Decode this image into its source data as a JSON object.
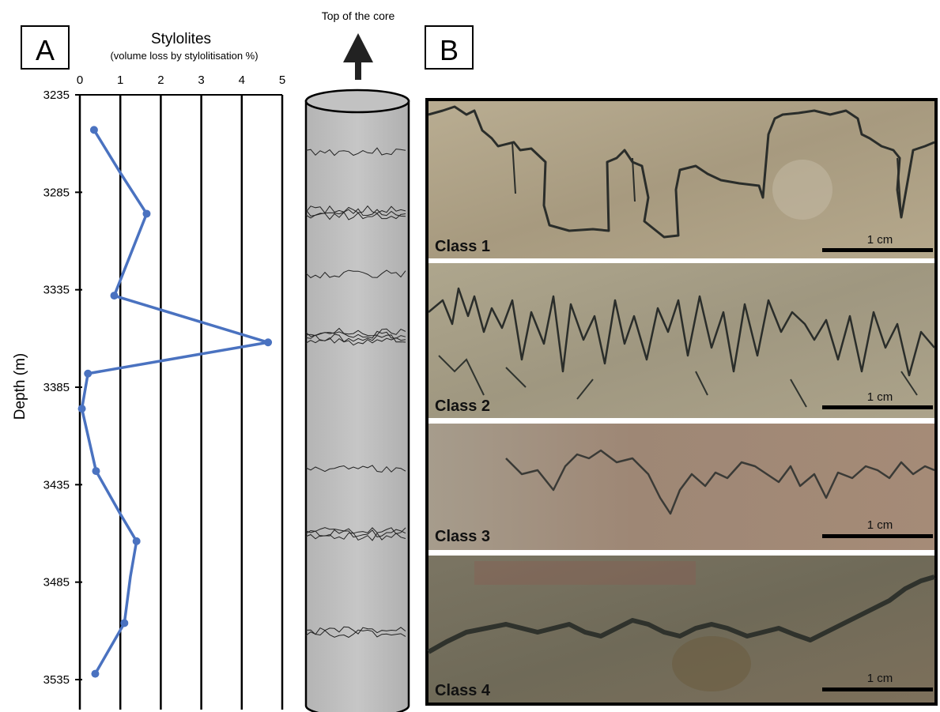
{
  "panel_a_label": "A",
  "panel_b_label": "B",
  "core_label": "Top of the core",
  "chart_data": {
    "type": "line",
    "title": "Stylolites",
    "subtitle": "(volume loss by stylolitisation %)",
    "xlabel": "",
    "ylabel": "Depth (m)",
    "xlim": [
      0,
      5
    ],
    "ylim": [
      3235,
      3545
    ],
    "y_inverted": true,
    "grid": "vertical",
    "x_ticks": [
      "0",
      "1",
      "2",
      "3",
      "4",
      "5"
    ],
    "y_ticks": [
      "3235",
      "3285",
      "3335",
      "3385",
      "3435",
      "3485",
      "3535"
    ],
    "line_color": "#4a72c0",
    "series": [
      {
        "x": [
          0.35,
          1.0,
          1.65,
          0.85,
          1.0,
          4.65,
          0.2,
          0.05,
          0.4,
          1.0,
          1.4,
          1.25,
          1.1,
          0.38
        ],
        "y": [
          3253,
          3275,
          3296,
          3338,
          3339,
          3362,
          3378,
          3396,
          3428,
          3450,
          3464,
          3482,
          3506,
          3532
        ]
      }
    ]
  },
  "photos": [
    {
      "class_label": "Class 1",
      "scale_label": "1 cm"
    },
    {
      "class_label": "Class 2",
      "scale_label": "1 cm"
    },
    {
      "class_label": "Class 3",
      "scale_label": "1 cm"
    },
    {
      "class_label": "Class 4",
      "scale_label": "1 cm"
    }
  ]
}
